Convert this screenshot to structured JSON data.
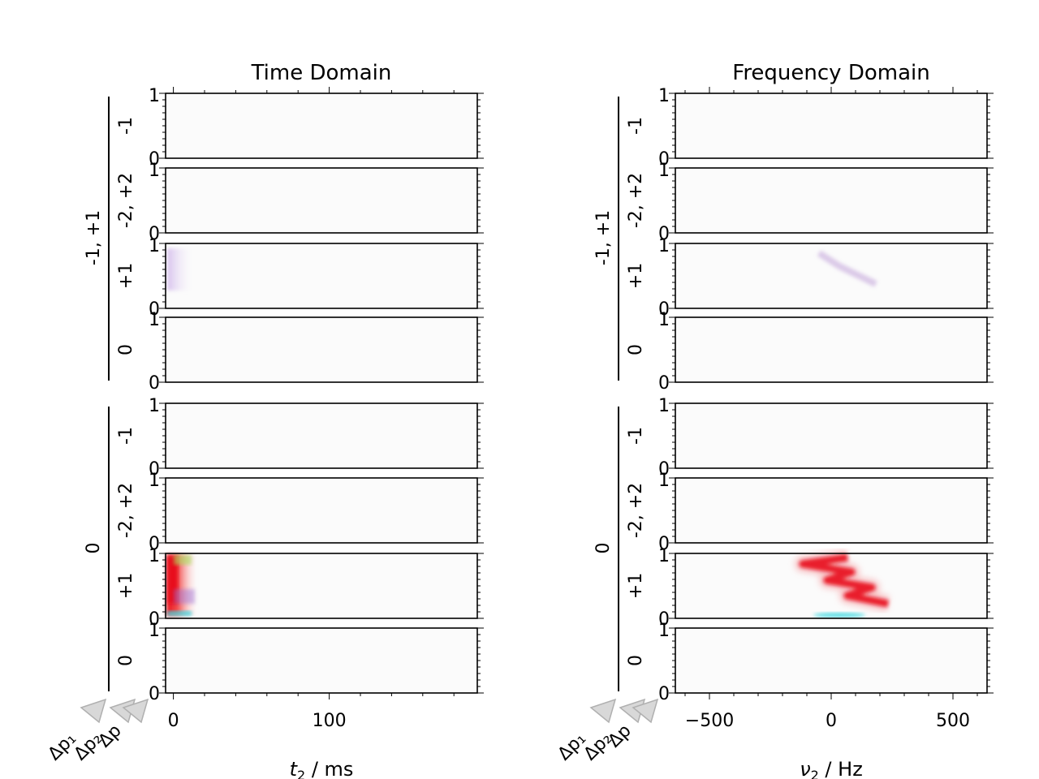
{
  "chart_data": [
    {
      "type": "heatmap",
      "title": "Time Domain",
      "xlabel_var": "t",
      "xlabel_sub": "2",
      "xlabel_unit": " / ms",
      "xlim": [
        -5,
        195
      ],
      "xticks": [
        {
          "value": 0,
          "label": "0"
        },
        {
          "value": 100,
          "label": "100"
        }
      ],
      "xminor": [
        20,
        40,
        60,
        80,
        120,
        140,
        160,
        180
      ],
      "ylim": [
        0,
        1
      ],
      "ytick_labels": [
        "0",
        "1"
      ],
      "groups": [
        {
          "label": "-1, +1",
          "rows": [
            {
              "label": "-1",
              "signal": "none"
            },
            {
              "label": "-2, +2",
              "signal": "none"
            },
            {
              "label": "+1",
              "signal": "weak"
            },
            {
              "label": "0",
              "signal": "none"
            }
          ]
        },
        {
          "label": "0",
          "rows": [
            {
              "label": "-1",
              "signal": "none"
            },
            {
              "label": "-2, +2",
              "signal": "none"
            },
            {
              "label": "+1",
              "signal": "strong"
            },
            {
              "label": "0",
              "signal": "none"
            }
          ]
        }
      ],
      "pathway_labels": [
        "Δp₁",
        "Δp₂",
        "Δp"
      ],
      "colors": {
        "strong": "#e8101c",
        "accent_green": "#a8e05a",
        "accent_cyan": "#40d8e0",
        "accent_purple": "#9a70d8"
      }
    },
    {
      "type": "heatmap",
      "title": "Frequency Domain",
      "xlabel_var": "ν",
      "xlabel_sub": "2",
      "xlabel_unit": " / Hz",
      "xlim": [
        -640,
        640
      ],
      "xticks": [
        {
          "value": -500,
          "label": "−500"
        },
        {
          "value": 0,
          "label": "0"
        },
        {
          "value": 500,
          "label": "500"
        }
      ],
      "xminor": [
        -600,
        -400,
        -300,
        -200,
        -100,
        100,
        200,
        300,
        400,
        600
      ],
      "ylim": [
        0,
        1
      ],
      "ytick_labels": [
        "0",
        "1"
      ],
      "groups": [
        {
          "label": "-1, +1",
          "rows": [
            {
              "label": "-1",
              "signal": "none"
            },
            {
              "label": "-2, +2",
              "signal": "none"
            },
            {
              "label": "+1",
              "signal": "weak"
            },
            {
              "label": "0",
              "signal": "none"
            }
          ]
        },
        {
          "label": "0",
          "rows": [
            {
              "label": "-1",
              "signal": "none"
            },
            {
              "label": "-2, +2",
              "signal": "none"
            },
            {
              "label": "+1",
              "signal": "strong"
            },
            {
              "label": "0",
              "signal": "none"
            }
          ]
        }
      ],
      "pathway_labels": [
        "Δp₁",
        "Δp₂",
        "Δp"
      ],
      "colors": {
        "strong": "#e8101c",
        "accent_green": "#a8e05a",
        "accent_cyan": "#40d8e0",
        "accent_purple": "#9a70d8"
      }
    }
  ]
}
